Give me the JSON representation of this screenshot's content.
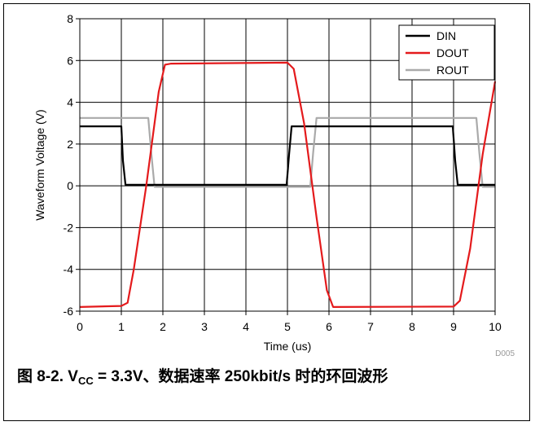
{
  "chart_data": {
    "type": "line",
    "xlabel": "Time (us)",
    "ylabel": "Waveform Voltage (V)",
    "xlim": [
      0,
      10
    ],
    "ylim": [
      -6,
      8
    ],
    "xticks": [
      "0",
      "1",
      "2",
      "3",
      "4",
      "5",
      "6",
      "7",
      "8",
      "9",
      "10"
    ],
    "yticks": [
      "-6",
      "-4",
      "-2",
      "0",
      "2",
      "4",
      "6",
      "8"
    ],
    "grid": true,
    "legend_position": "top-right",
    "watermark": "D005",
    "series": [
      {
        "name": "DIN",
        "color": "#000000",
        "x": [
          0,
          1.0,
          1.04,
          1.1,
          4.98,
          5.04,
          5.1,
          8.98,
          9.04,
          9.1,
          10
        ],
        "y": [
          2.85,
          2.85,
          1.2,
          0.05,
          0.05,
          1.5,
          2.85,
          2.85,
          1.2,
          0.05,
          0.05
        ]
      },
      {
        "name": "DOUT",
        "color": "#e41a1c",
        "x": [
          0,
          1.0,
          1.15,
          1.3,
          1.6,
          1.9,
          2.05,
          2.2,
          5.0,
          5.15,
          5.4,
          5.7,
          5.95,
          6.1,
          9.0,
          9.15,
          9.4,
          9.7,
          10
        ],
        "y": [
          -5.8,
          -5.75,
          -5.6,
          -4.0,
          0.0,
          4.5,
          5.8,
          5.85,
          5.9,
          5.6,
          3.0,
          -1.5,
          -5.0,
          -5.8,
          -5.78,
          -5.5,
          -3.0,
          1.5,
          5.0
        ]
      },
      {
        "name": "ROUT",
        "color": "#aaaaaa",
        "x": [
          0,
          1.65,
          1.72,
          1.8,
          5.55,
          5.62,
          5.7,
          9.55,
          9.62,
          9.7,
          10
        ],
        "y": [
          3.25,
          3.25,
          1.6,
          -0.05,
          -0.05,
          1.6,
          3.25,
          3.25,
          1.6,
          -0.05,
          -0.05
        ]
      }
    ]
  },
  "caption": {
    "prefix": "图 8-2. V",
    "subscript": "CC",
    "suffix": " = 3.3V、数据速率 250kbit/s 时的环回波形"
  }
}
